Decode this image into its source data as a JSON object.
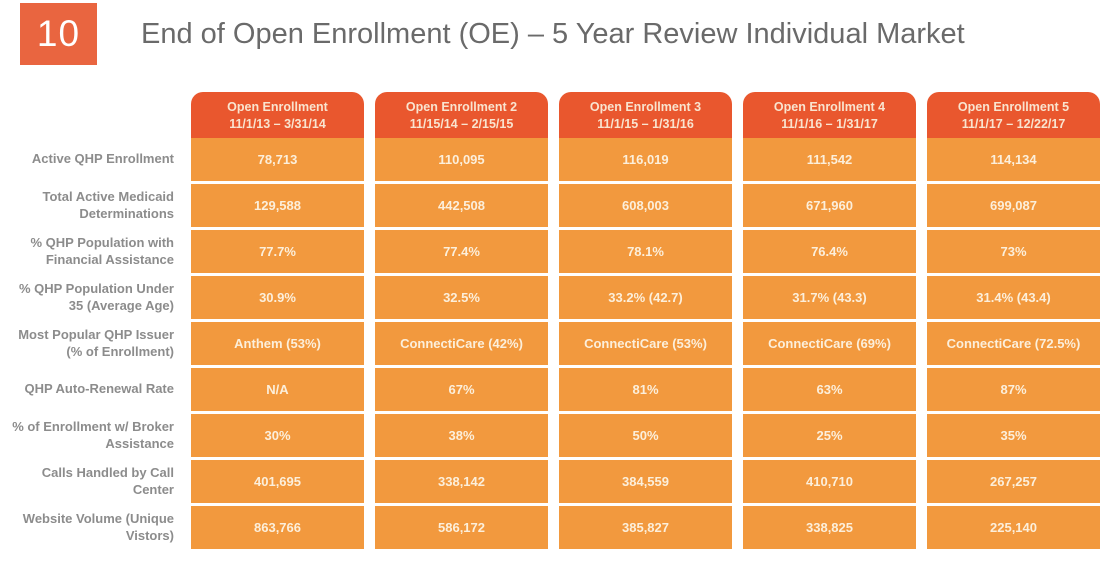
{
  "slide": {
    "number": "10",
    "title": "End of Open Enrollment (OE) – 5 Year Review Individual Market"
  },
  "colors": {
    "badge_orange": "#E96540",
    "header_red_orange": "#E9572E",
    "cell_orange": "#F2993E",
    "cell_text": "#FCEFDB",
    "header_text": "#F9E4CF",
    "row_label_gray": "#8C8C8C",
    "title_gray": "#6A6A6A"
  },
  "chart_data": {
    "type": "table",
    "title": "End of Open Enrollment (OE) – 5 Year Review Individual Market",
    "columns": [
      {
        "label": "Open Enrollment",
        "dates": "11/1/13 – 3/31/14"
      },
      {
        "label": "Open Enrollment 2",
        "dates": "11/15/14 – 2/15/15"
      },
      {
        "label": "Open Enrollment 3",
        "dates": "11/1/15 – 1/31/16"
      },
      {
        "label": "Open Enrollment 4",
        "dates": "11/1/16 – 1/31/17"
      },
      {
        "label": "Open Enrollment 5",
        "dates": "11/1/17 – 12/22/17"
      }
    ],
    "rows": [
      {
        "label": "Active QHP Enrollment",
        "values": [
          "78,713",
          "110,095",
          "116,019",
          "111,542",
          "114,134"
        ]
      },
      {
        "label": "Total Active Medicaid Determinations",
        "values": [
          "129,588",
          "442,508",
          "608,003",
          "671,960",
          "699,087"
        ]
      },
      {
        "label": "% QHP Population with Financial Assistance",
        "values": [
          "77.7%",
          "77.4%",
          "78.1%",
          "76.4%",
          "73%"
        ]
      },
      {
        "label": "% QHP Population Under 35 (Average Age)",
        "values": [
          "30.9%",
          "32.5%",
          "33.2% (42.7)",
          "31.7% (43.3)",
          "31.4% (43.4)"
        ]
      },
      {
        "label": "Most Popular QHP Issuer (% of Enrollment)",
        "values": [
          "Anthem (53%)",
          "ConnectiCare (42%)",
          "ConnectiCare (53%)",
          "ConnectiCare (69%)",
          "ConnectiCare (72.5%)"
        ]
      },
      {
        "label": "QHP Auto-Renewal Rate",
        "values": [
          "N/A",
          "67%",
          "81%",
          "63%",
          "87%"
        ]
      },
      {
        "label": "% of Enrollment w/ Broker Assistance",
        "values": [
          "30%",
          "38%",
          "50%",
          "25%",
          "35%"
        ]
      },
      {
        "label": "Calls Handled by Call Center",
        "values": [
          "401,695",
          "338,142",
          "384,559",
          "410,710",
          "267,257"
        ]
      },
      {
        "label": "Website Volume (Unique Vistors)",
        "values": [
          "863,766",
          "586,172",
          "385,827",
          "338,825",
          "225,140"
        ]
      }
    ]
  }
}
